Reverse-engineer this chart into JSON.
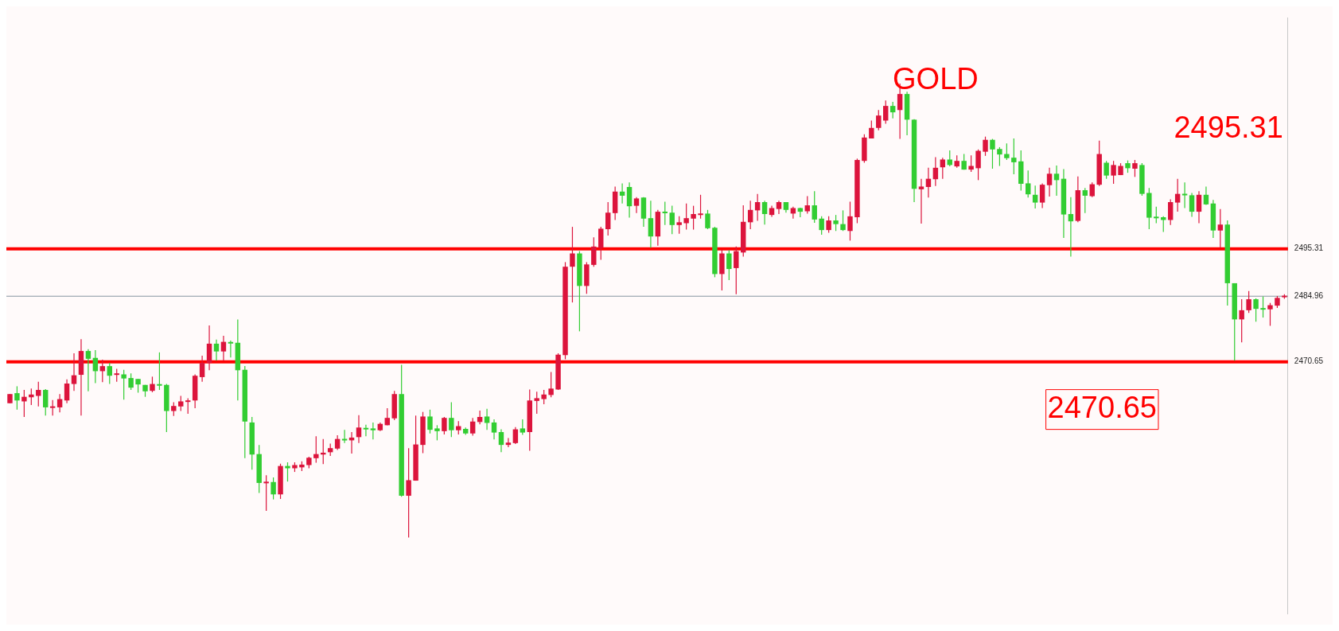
{
  "chart_data": {
    "type": "candlestick",
    "title": "GOLD",
    "categories": [
      null,
      null,
      null,
      null,
      null,
      null,
      null,
      null,
      null,
      null,
      null,
      null,
      null,
      null,
      null,
      null,
      null,
      null,
      null,
      null,
      null,
      null,
      null,
      null,
      null,
      null,
      null,
      null,
      null,
      null,
      null,
      null,
      null,
      null,
      null,
      null,
      null,
      null,
      null,
      null,
      null,
      null,
      null,
      null,
      null,
      null,
      null,
      null,
      null,
      null,
      null,
      null,
      null,
      null,
      null,
      null,
      null,
      null,
      null,
      null,
      null,
      null,
      null,
      null,
      null,
      null,
      null,
      null,
      null,
      null,
      null,
      null,
      null,
      null,
      null,
      null,
      null,
      null,
      null,
      null,
      null,
      null,
      null,
      null,
      null,
      null,
      null,
      null,
      null,
      null,
      null,
      null,
      null,
      null,
      null,
      null,
      null,
      null,
      null,
      null,
      null,
      null,
      null,
      null,
      null,
      null,
      null,
      null,
      null,
      null,
      null,
      null,
      null,
      null,
      null,
      null,
      null,
      null,
      null,
      null,
      null,
      null,
      null,
      null,
      null,
      null,
      null,
      null,
      null,
      null,
      null,
      null,
      null,
      null,
      null,
      null,
      null,
      null,
      null,
      null,
      null,
      null,
      null,
      null,
      null,
      null,
      null,
      null,
      null,
      null,
      null,
      null,
      null,
      null,
      null,
      null,
      null,
      null,
      null,
      null,
      null,
      null,
      null,
      null,
      null,
      null,
      null,
      null,
      null,
      null,
      null,
      null,
      null,
      null,
      null,
      null,
      null,
      null,
      null,
      null
    ],
    "ohlc": [
      [
        2461.6,
        2463.6,
        2461.6,
        2463.6
      ],
      [
        2463.8,
        2465.3,
        2460.2,
        2462.2
      ],
      [
        2462.0,
        2464.5,
        2458.6,
        2463.0
      ],
      [
        2462.9,
        2464.8,
        2461.2,
        2463.5
      ],
      [
        2463.2,
        2466.3,
        2460.9,
        2464.5
      ],
      [
        2464.5,
        2464.7,
        2458.9,
        2460.7
      ],
      [
        2460.7,
        2462.3,
        2458.9,
        2460.8
      ],
      [
        2460.7,
        2463.6,
        2459.6,
        2462.5
      ],
      [
        2462.2,
        2466.8,
        2461.6,
        2465.9
      ],
      [
        2465.8,
        2472.5,
        2464.3,
        2467.7
      ],
      [
        2467.8,
        2475.6,
        2458.9,
        2473.0
      ],
      [
        2473.0,
        2473.4,
        2464.2,
        2471.3
      ],
      [
        2471.5,
        2473.2,
        2466.0,
        2468.6
      ],
      [
        2468.6,
        2471.1,
        2466.2,
        2469.7
      ],
      [
        2469.7,
        2470.4,
        2465.8,
        2467.6
      ],
      [
        2467.8,
        2469.1,
        2466.3,
        2468.1
      ],
      [
        2467.9,
        2468.9,
        2462.4,
        2467.0
      ],
      [
        2467.1,
        2468.1,
        2464.5,
        2465.0
      ],
      [
        2466.9,
        2466.9,
        2463.9,
        2465.7
      ],
      [
        2465.6,
        2465.6,
        2463.0,
        2464.2
      ],
      [
        2464.3,
        2467.4,
        2464.0,
        2465.8
      ],
      [
        2465.7,
        2472.7,
        2464.5,
        2465.5
      ],
      [
        2465.6,
        2465.8,
        2455.3,
        2459.9
      ],
      [
        2459.9,
        2461.8,
        2458.8,
        2461.0
      ],
      [
        2460.9,
        2463.2,
        2459.9,
        2462.0
      ],
      [
        2461.9,
        2462.7,
        2459.3,
        2462.2
      ],
      [
        2462.2,
        2467.9,
        2460.5,
        2467.6
      ],
      [
        2467.3,
        2472.0,
        2466.3,
        2470.4
      ],
      [
        2470.4,
        2478.6,
        2468.8,
        2474.6
      ],
      [
        2474.6,
        2475.5,
        2470.9,
        2472.9
      ],
      [
        2472.9,
        2476.3,
        2470.9,
        2475.0
      ],
      [
        2474.9,
        2475.3,
        2471.6,
        2474.7
      ],
      [
        2474.8,
        2479.9,
        2462.2,
        2468.8
      ],
      [
        2468.9,
        2469.7,
        2449.6,
        2457.6
      ],
      [
        2457.4,
        2458.6,
        2447.1,
        2450.4
      ],
      [
        2450.5,
        2452.5,
        2442.0,
        2444.2
      ],
      [
        2444.2,
        2445.9,
        2438.1,
        2444.4
      ],
      [
        2444.4,
        2445.4,
        2440.6,
        2441.7
      ],
      [
        2441.7,
        2448.4,
        2440.7,
        2447.9
      ],
      [
        2447.9,
        2448.7,
        2444.5,
        2447.4
      ],
      [
        2447.4,
        2448.7,
        2446.6,
        2448.1
      ],
      [
        2447.6,
        2448.9,
        2446.8,
        2448.2
      ],
      [
        2448.1,
        2449.9,
        2447.4,
        2449.7
      ],
      [
        2449.6,
        2454.4,
        2448.6,
        2450.5
      ],
      [
        2450.4,
        2453.8,
        2448.3,
        2450.8
      ],
      [
        2450.9,
        2452.8,
        2450.1,
        2451.8
      ],
      [
        2451.7,
        2454.6,
        2451.4,
        2453.8
      ],
      [
        2453.8,
        2455.8,
        2452.9,
        2453.5
      ],
      [
        2453.5,
        2455.3,
        2450.6,
        2454.1
      ],
      [
        2454.2,
        2459.0,
        2452.9,
        2456.3
      ],
      [
        2456.1,
        2456.9,
        2454.4,
        2456.0
      ],
      [
        2456.1,
        2457.4,
        2453.7,
        2455.7
      ],
      [
        2455.7,
        2457.4,
        2455.5,
        2457.1
      ],
      [
        2456.8,
        2460.5,
        2456.8,
        2458.4
      ],
      [
        2458.3,
        2464.3,
        2457.9,
        2463.6
      ],
      [
        2463.6,
        2470.0,
        2441.2,
        2441.4
      ],
      [
        2441.4,
        2451.8,
        2432.3,
        2444.8
      ],
      [
        2444.7,
        2458.9,
        2444.7,
        2452.6
      ],
      [
        2452.5,
        2459.7,
        2450.7,
        2458.7
      ],
      [
        2458.7,
        2460.2,
        2455.0,
        2455.8
      ],
      [
        2456.1,
        2456.8,
        2453.5,
        2455.5
      ],
      [
        2455.5,
        2458.6,
        2454.8,
        2458.4
      ],
      [
        2458.4,
        2461.8,
        2454.2,
        2455.7
      ],
      [
        2455.7,
        2457.7,
        2454.8,
        2456.6
      ],
      [
        2456.0,
        2456.3,
        2454.7,
        2455.0
      ],
      [
        2455.0,
        2458.4,
        2454.5,
        2457.6
      ],
      [
        2457.5,
        2460.0,
        2457.0,
        2458.6
      ],
      [
        2458.7,
        2460.4,
        2455.8,
        2457.3
      ],
      [
        2457.4,
        2458.1,
        2453.7,
        2455.2
      ],
      [
        2455.3,
        2455.9,
        2450.9,
        2452.5
      ],
      [
        2452.5,
        2454.0,
        2452.0,
        2453.0
      ],
      [
        2452.9,
        2456.4,
        2452.7,
        2455.9
      ],
      [
        2456.1,
        2458.1,
        2454.7,
        2455.2
      ],
      [
        2455.3,
        2464.6,
        2451.2,
        2462.2
      ],
      [
        2462.1,
        2464.1,
        2459.3,
        2462.7
      ],
      [
        2462.5,
        2464.5,
        2461.4,
        2463.5
      ],
      [
        2463.4,
        2468.4,
        2462.9,
        2464.8
      ],
      [
        2464.6,
        2472.5,
        2464.5,
        2472.2
      ],
      [
        2472.1,
        2492.4,
        2471.2,
        2491.4
      ],
      [
        2491.4,
        2500.1,
        2483.6,
        2494.3
      ],
      [
        2494.3,
        2494.8,
        2477.3,
        2487.2
      ],
      [
        2487.2,
        2492.4,
        2485.5,
        2491.9
      ],
      [
        2491.8,
        2497.8,
        2491.4,
        2495.8
      ],
      [
        2495.5,
        2500.1,
        2492.9,
        2499.7
      ],
      [
        2499.6,
        2505.5,
        2498.2,
        2503.2
      ],
      [
        2503.1,
        2508.9,
        2501.6,
        2507.8
      ],
      [
        2507.8,
        2509.6,
        2505.2,
        2506.9
      ],
      [
        2508.8,
        2509.8,
        2502.1,
        2504.6
      ],
      [
        2504.7,
        2506.6,
        2503.1,
        2506.3
      ],
      [
        2506.5,
        2506.6,
        2500.1,
        2501.9
      ],
      [
        2502.0,
        2505.8,
        2495.5,
        2498.0
      ],
      [
        2498.0,
        2503.8,
        2496.0,
        2503.4
      ],
      [
        2503.4,
        2505.6,
        2500.5,
        2503.1
      ],
      [
        2503.2,
        2504.7,
        2498.5,
        2500.5
      ],
      [
        2500.5,
        2502.4,
        2498.6,
        2501.1
      ],
      [
        2500.9,
        2505.2,
        2499.5,
        2502.0
      ],
      [
        2501.9,
        2504.7,
        2499.5,
        2502.9
      ],
      [
        2502.7,
        2507.1,
        2501.9,
        2503.0
      ],
      [
        2503.0,
        2503.8,
        2499.6,
        2499.8
      ],
      [
        2499.9,
        2500.1,
        2489.1,
        2489.8
      ],
      [
        2489.8,
        2495.1,
        2486.2,
        2494.3
      ],
      [
        2494.3,
        2495.0,
        2488.5,
        2490.9
      ],
      [
        2491.1,
        2495.8,
        2485.4,
        2494.8
      ],
      [
        2494.5,
        2504.8,
        2493.6,
        2501.2
      ],
      [
        2501.1,
        2505.8,
        2499.6,
        2503.8
      ],
      [
        2503.7,
        2507.3,
        2501.4,
        2505.5
      ],
      [
        2505.5,
        2505.8,
        2500.6,
        2502.9
      ],
      [
        2502.7,
        2504.7,
        2502.3,
        2504.2
      ],
      [
        2504.0,
        2505.8,
        2502.9,
        2505.5
      ],
      [
        2505.5,
        2505.5,
        2503.2,
        2503.8
      ],
      [
        2503.0,
        2504.5,
        2501.9,
        2504.2
      ],
      [
        2504.2,
        2504.3,
        2502.2,
        2503.4
      ],
      [
        2503.5,
        2506.8,
        2503.0,
        2504.8
      ],
      [
        2504.8,
        2507.9,
        2501.0,
        2501.7
      ],
      [
        2501.9,
        2502.4,
        2498.4,
        2499.4
      ],
      [
        2499.4,
        2502.4,
        2498.8,
        2501.5
      ],
      [
        2501.5,
        2502.7,
        2499.2,
        2500.7
      ],
      [
        2500.7,
        2503.7,
        2499.2,
        2499.4
      ],
      [
        2499.2,
        2505.6,
        2497.1,
        2502.4
      ],
      [
        2502.2,
        2515.0,
        2500.9,
        2514.7
      ],
      [
        2514.5,
        2520.3,
        2514.1,
        2519.6
      ],
      [
        2519.4,
        2523.3,
        2519.4,
        2521.7
      ],
      [
        2521.7,
        2525.6,
        2521.2,
        2524.4
      ],
      [
        2523.3,
        2527.7,
        2522.6,
        2526.5
      ],
      [
        2526.5,
        2527.4,
        2523.8,
        2525.1
      ],
      [
        2525.6,
        2531.4,
        2519.3,
        2529.1
      ],
      [
        2529.1,
        2529.6,
        2520.1,
        2523.5
      ],
      [
        2523.5,
        2523.6,
        2505.5,
        2508.4
      ],
      [
        2508.3,
        2510.6,
        2500.8,
        2508.9
      ],
      [
        2508.8,
        2513.0,
        2506.5,
        2510.6
      ],
      [
        2510.5,
        2515.3,
        2509.0,
        2513.0
      ],
      [
        2513.1,
        2515.2,
        2510.6,
        2514.8
      ],
      [
        2514.8,
        2516.8,
        2513.3,
        2513.6
      ],
      [
        2513.3,
        2515.7,
        2513.0,
        2514.5
      ],
      [
        2514.5,
        2516.0,
        2512.6,
        2512.6
      ],
      [
        2512.6,
        2515.7,
        2512.1,
        2513.4
      ],
      [
        2512.9,
        2517.0,
        2510.3,
        2516.7
      ],
      [
        2516.5,
        2519.8,
        2515.6,
        2519.1
      ],
      [
        2519.1,
        2519.3,
        2512.8,
        2517.0
      ],
      [
        2517.1,
        2517.5,
        2513.4,
        2515.9
      ],
      [
        2516.0,
        2518.3,
        2514.7,
        2515.1
      ],
      [
        2515.2,
        2519.4,
        2511.6,
        2514.2
      ],
      [
        2514.4,
        2516.8,
        2508.0,
        2509.5
      ],
      [
        2509.6,
        2512.4,
        2506.5,
        2507.2
      ],
      [
        2507.1,
        2509.1,
        2504.1,
        2505.4
      ],
      [
        2505.4,
        2509.6,
        2504.2,
        2509.3
      ],
      [
        2509.2,
        2513.0,
        2506.7,
        2511.7
      ],
      [
        2511.7,
        2513.5,
        2506.9,
        2510.3
      ],
      [
        2510.6,
        2512.7,
        2497.7,
        2502.8
      ],
      [
        2502.9,
        2506.6,
        2493.6,
        2501.3
      ],
      [
        2501.4,
        2511.1,
        2501.1,
        2508.1
      ],
      [
        2508.1,
        2508.6,
        2503.1,
        2506.9
      ],
      [
        2506.8,
        2509.8,
        2506.6,
        2509.4
      ],
      [
        2509.3,
        2518.9,
        2509.0,
        2516.0
      ],
      [
        2514.1,
        2514.5,
        2510.6,
        2511.3
      ],
      [
        2511.3,
        2514.5,
        2509.5,
        2513.6
      ],
      [
        2511.4,
        2514.0,
        2511.4,
        2513.4
      ],
      [
        2514.0,
        2514.6,
        2511.9,
        2512.9
      ],
      [
        2512.8,
        2514.7,
        2511.0,
        2514.0
      ],
      [
        2513.6,
        2514.0,
        2506.9,
        2507.3
      ],
      [
        2507.5,
        2508.6,
        2499.6,
        2502.1
      ],
      [
        2502.2,
        2504.5,
        2500.9,
        2502.1
      ],
      [
        2502.2,
        2502.4,
        2499.0,
        2501.6
      ],
      [
        2501.6,
        2506.1,
        2500.5,
        2505.5
      ],
      [
        2505.4,
        2510.6,
        2503.4,
        2507.3
      ],
      [
        2507.3,
        2509.8,
        2504.2,
        2507.0
      ],
      [
        2507.0,
        2507.5,
        2502.3,
        2503.4
      ],
      [
        2503.4,
        2507.9,
        2500.9,
        2507.1
      ],
      [
        2507.1,
        2508.9,
        2504.9,
        2505.0
      ],
      [
        2505.2,
        2506.0,
        2497.7,
        2499.3
      ],
      [
        2499.3,
        2504.0,
        2495.5,
        2500.6
      ],
      [
        2500.6,
        2501.5,
        2482.9,
        2487.8
      ],
      [
        2487.8,
        2487.8,
        2470.9,
        2479.9
      ],
      [
        2479.9,
        2484.3,
        2474.9,
        2481.9
      ],
      [
        2481.9,
        2486.1,
        2481.3,
        2484.3
      ],
      [
        2484.3,
        2484.5,
        2479.4,
        2482.2
      ],
      [
        2482.3,
        2484.9,
        2480.3,
        2482.1
      ],
      [
        2482.1,
        2483.5,
        2478.5,
        2483.0
      ],
      [
        2482.9,
        2485.0,
        2482.4,
        2484.6
      ],
      [
        2484.8,
        2485.4,
        2484.4,
        2485.0
      ]
    ],
    "colors": [
      "#dc143c",
      "#32cd32",
      "#dc143c",
      "#dc143c",
      "#dc143c",
      "#32cd32",
      "#dc143c",
      "#dc143c",
      "#dc143c",
      "#dc143c",
      "#dc143c",
      "#32cd32",
      "#32cd32",
      "#dc143c",
      "#32cd32",
      "#dc143c",
      "#32cd32",
      "#32cd32",
      "#32cd32",
      "#32cd32",
      "#dc143c",
      "#32cd32",
      "#32cd32",
      "#dc143c",
      "#dc143c",
      "#dc143c",
      "#dc143c",
      "#dc143c",
      "#dc143c",
      "#32cd32",
      "#dc143c",
      "#32cd32",
      "#32cd32",
      "#32cd32",
      "#32cd32",
      "#32cd32",
      "#dc143c",
      "#32cd32",
      "#dc143c",
      "#32cd32",
      "#dc143c",
      "#dc143c",
      "#dc143c",
      "#dc143c",
      "#dc143c",
      "#dc143c",
      "#dc143c",
      "#32cd32",
      "#dc143c",
      "#dc143c",
      "#32cd32",
      "#32cd32",
      "#dc143c",
      "#dc143c",
      "#dc143c",
      "#32cd32",
      "#dc143c",
      "#dc143c",
      "#dc143c",
      "#32cd32",
      "#32cd32",
      "#dc143c",
      "#32cd32",
      "#dc143c",
      "#32cd32",
      "#dc143c",
      "#dc143c",
      "#32cd32",
      "#32cd32",
      "#32cd32",
      "#dc143c",
      "#dc143c",
      "#32cd32",
      "#dc143c",
      "#dc143c",
      "#dc143c",
      "#dc143c",
      "#dc143c",
      "#dc143c",
      "#dc143c",
      "#32cd32",
      "#dc143c",
      "#dc143c",
      "#dc143c",
      "#dc143c",
      "#dc143c",
      "#32cd32",
      "#32cd32",
      "#dc143c",
      "#32cd32",
      "#32cd32",
      "#dc143c",
      "#32cd32",
      "#32cd32",
      "#dc143c",
      "#dc143c",
      "#dc143c",
      "#dc143c",
      "#32cd32",
      "#32cd32",
      "#dc143c",
      "#32cd32",
      "#dc143c",
      "#dc143c",
      "#dc143c",
      "#dc143c",
      "#32cd32",
      "#dc143c",
      "#dc143c",
      "#32cd32",
      "#dc143c",
      "#32cd32",
      "#dc143c",
      "#32cd32",
      "#32cd32",
      "#dc143c",
      "#32cd32",
      "#32cd32",
      "#dc143c",
      "#dc143c",
      "#dc143c",
      "#dc143c",
      "#dc143c",
      "#dc143c",
      "#32cd32",
      "#dc143c",
      "#32cd32",
      "#32cd32",
      "#dc143c",
      "#dc143c",
      "#dc143c",
      "#dc143c",
      "#32cd32",
      "#dc143c",
      "#32cd32",
      "#dc143c",
      "#dc143c",
      "#dc143c",
      "#32cd32",
      "#32cd32",
      "#32cd32",
      "#32cd32",
      "#32cd32",
      "#32cd32",
      "#32cd32",
      "#dc143c",
      "#dc143c",
      "#32cd32",
      "#32cd32",
      "#32cd32",
      "#dc143c",
      "#32cd32",
      "#dc143c",
      "#dc143c",
      "#32cd32",
      "#dc143c",
      "#dc143c",
      "#32cd32",
      "#dc143c",
      "#32cd32",
      "#32cd32",
      "#32cd32",
      "#32cd32",
      "#dc143c",
      "#dc143c",
      "#32cd32",
      "#32cd32",
      "#dc143c",
      "#32cd32",
      "#32cd32",
      "#dc143c",
      "#32cd32",
      "#32cd32",
      "#dc143c",
      "#dc143c",
      "#32cd32",
      "#32cd32",
      "#dc143c",
      "#dc143c",
      "#dc143c"
    ],
    "ylim": [
      2415.7,
      2545.8
    ],
    "yticks": [
      2470.65,
      2484.96,
      2495.31
    ],
    "tick_labels": "y",
    "ref_lines": [
      {
        "axis": "y",
        "value": 2495.31,
        "label": "2495.31",
        "color": "#ff0000"
      },
      {
        "axis": "y",
        "value": 2470.65,
        "label": "2470.65",
        "color": "#ff0000"
      },
      {
        "axis": "y",
        "value": 2484.96,
        "color": "#8795a1"
      }
    ]
  }
}
